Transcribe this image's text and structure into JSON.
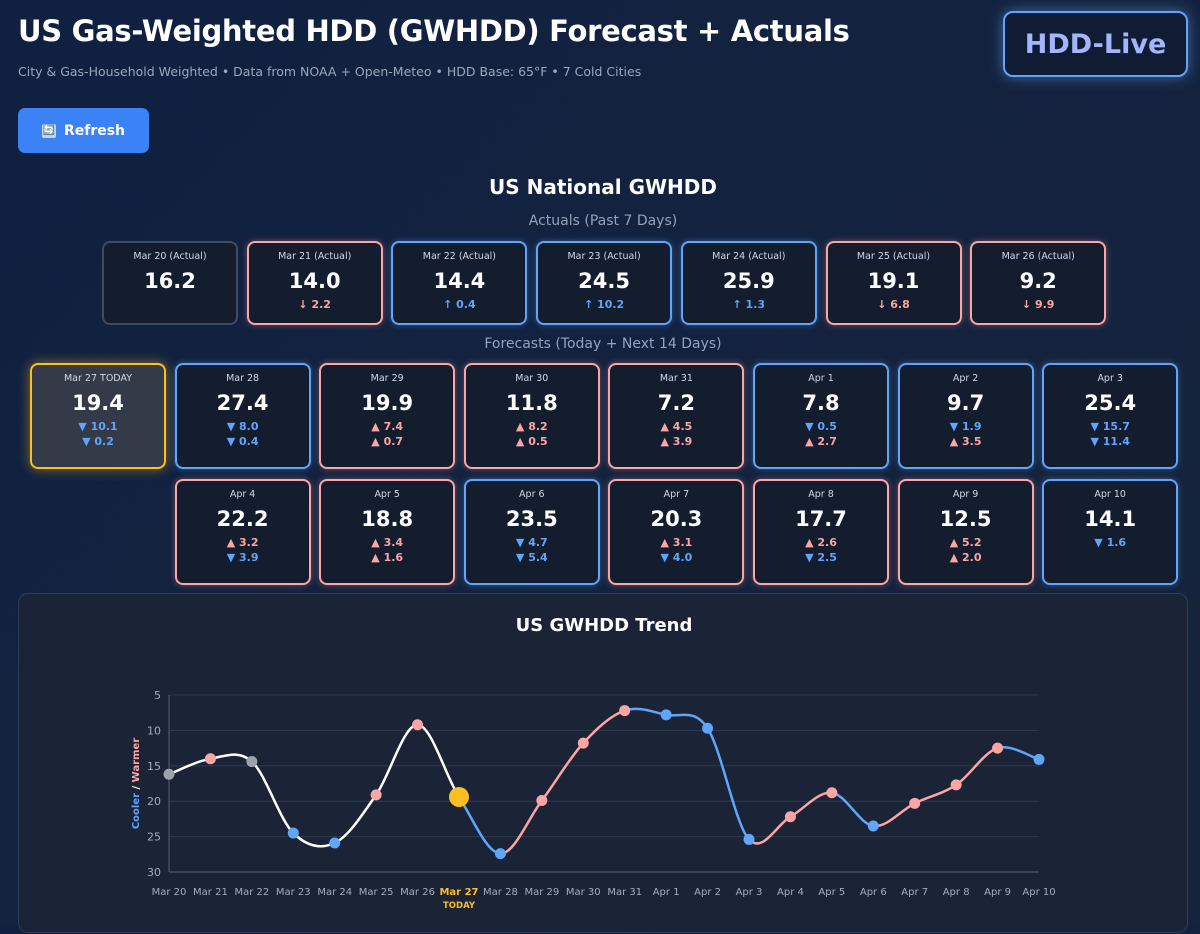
{
  "header": {
    "title": "US Gas-Weighted HDD (GWHDD) Forecast + Actuals",
    "subtitle": "City & Gas-Household Weighted • Data from NOAA + Open-Meteo • HDD Base: 65°F • 7 Cold Cities",
    "logo": "HDD-Live"
  },
  "toolbar": {
    "refresh_label": "Refresh",
    "refresh_icon": "🔄"
  },
  "section": {
    "title": "US National GWHDD",
    "actuals_label": "Actuals (Past 7 Days)",
    "forecasts_label": "Forecasts (Today + Next 14 Days)"
  },
  "actuals": [
    {
      "date": "Mar 20 (Actual)",
      "value": "16.2",
      "change": "",
      "dir": "none"
    },
    {
      "date": "Mar 21 (Actual)",
      "value": "14.0",
      "change": "↓ 2.2",
      "dir": "down"
    },
    {
      "date": "Mar 22 (Actual)",
      "value": "14.4",
      "change": "↑ 0.4",
      "dir": "up"
    },
    {
      "date": "Mar 23 (Actual)",
      "value": "24.5",
      "change": "↑ 10.2",
      "dir": "up"
    },
    {
      "date": "Mar 24 (Actual)",
      "value": "25.9",
      "change": "↑ 1.3",
      "dir": "up"
    },
    {
      "date": "Mar 25 (Actual)",
      "value": "19.1",
      "change": "↓ 6.8",
      "dir": "down"
    },
    {
      "date": "Mar 26 (Actual)",
      "value": "9.2",
      "change": "↓ 9.9",
      "dir": "down"
    }
  ],
  "forecasts": [
    {
      "date": "Mar 27 TODAY",
      "value": "19.4",
      "c1": "▼ 10.1",
      "d1": "blue",
      "c2": "▼ 0.2",
      "d2": "blue",
      "today": true
    },
    {
      "date": "Mar 28",
      "value": "27.4",
      "c1": "▼ 8.0",
      "d1": "blue",
      "c2": "▼ 0.4",
      "d2": "blue"
    },
    {
      "date": "Mar 29",
      "value": "19.9",
      "c1": "▲ 7.4",
      "d1": "red",
      "c2": "▲ 0.7",
      "d2": "red"
    },
    {
      "date": "Mar 30",
      "value": "11.8",
      "c1": "▲ 8.2",
      "d1": "red",
      "c2": "▲ 0.5",
      "d2": "red"
    },
    {
      "date": "Mar 31",
      "value": "7.2",
      "c1": "▲ 4.5",
      "d1": "red",
      "c2": "▲ 3.9",
      "d2": "red"
    },
    {
      "date": "Apr 1",
      "value": "7.8",
      "c1": "▼ 0.5",
      "d1": "blue",
      "c2": "▲ 2.7",
      "d2": "red"
    },
    {
      "date": "Apr 2",
      "value": "9.7",
      "c1": "▼ 1.9",
      "d1": "blue",
      "c2": "▲ 3.5",
      "d2": "red"
    },
    {
      "date": "Apr 3",
      "value": "25.4",
      "c1": "▼ 15.7",
      "d1": "blue",
      "c2": "▼ 11.4",
      "d2": "blue"
    },
    {
      "date": "Apr 4",
      "value": "22.2",
      "c1": "▲ 3.2",
      "d1": "red",
      "c2": "▼ 3.9",
      "d2": "blue"
    },
    {
      "date": "Apr 5",
      "value": "18.8",
      "c1": "▲ 3.4",
      "d1": "red",
      "c2": "▲ 1.6",
      "d2": "red"
    },
    {
      "date": "Apr 6",
      "value": "23.5",
      "c1": "▼ 4.7",
      "d1": "blue",
      "c2": "▼ 5.4",
      "d2": "blue"
    },
    {
      "date": "Apr 7",
      "value": "20.3",
      "c1": "▲ 3.1",
      "d1": "red",
      "c2": "▼ 4.0",
      "d2": "blue"
    },
    {
      "date": "Apr 8",
      "value": "17.7",
      "c1": "▲ 2.6",
      "d1": "red",
      "c2": "▼ 2.5",
      "d2": "blue"
    },
    {
      "date": "Apr 9",
      "value": "12.5",
      "c1": "▲ 5.2",
      "d1": "red",
      "c2": "▲ 2.0",
      "d2": "red"
    },
    {
      "date": "Apr 10",
      "value": "14.1",
      "c1": "▼ 1.6",
      "d1": "blue",
      "c2": "",
      "d2": "blue"
    }
  ],
  "colors": {
    "cooler": "#60a5fa",
    "warmer": "#fca5a5",
    "actual_line": "#ffffff",
    "today": "#fbbf24",
    "neutral": "#9ca3af",
    "grid": "#2e3a4f"
  },
  "chart_data": {
    "type": "line",
    "title": "US GWHDD Trend",
    "ylabel_cool": "Cooler",
    "ylabel_sep": " / ",
    "ylabel_warm": "Warmer",
    "y_inverted": true,
    "ylim": [
      5,
      30
    ],
    "yticks": [
      5,
      10,
      15,
      20,
      25,
      30
    ],
    "today_label": "TODAY",
    "today_index": 7,
    "categories": [
      "Mar 20",
      "Mar 21",
      "Mar 22",
      "Mar 23",
      "Mar 24",
      "Mar 25",
      "Mar 26",
      "Mar 27",
      "Mar 28",
      "Mar 29",
      "Mar 30",
      "Mar 31",
      "Apr 1",
      "Apr 2",
      "Apr 3",
      "Apr 4",
      "Apr 5",
      "Apr 6",
      "Apr 7",
      "Apr 8",
      "Apr 9",
      "Apr 10"
    ],
    "values": [
      16.2,
      14.0,
      14.4,
      24.5,
      25.9,
      19.1,
      9.2,
      19.4,
      27.4,
      19.9,
      11.8,
      7.2,
      7.8,
      9.7,
      25.4,
      22.2,
      18.8,
      23.5,
      20.3,
      17.7,
      12.5,
      14.1
    ]
  }
}
